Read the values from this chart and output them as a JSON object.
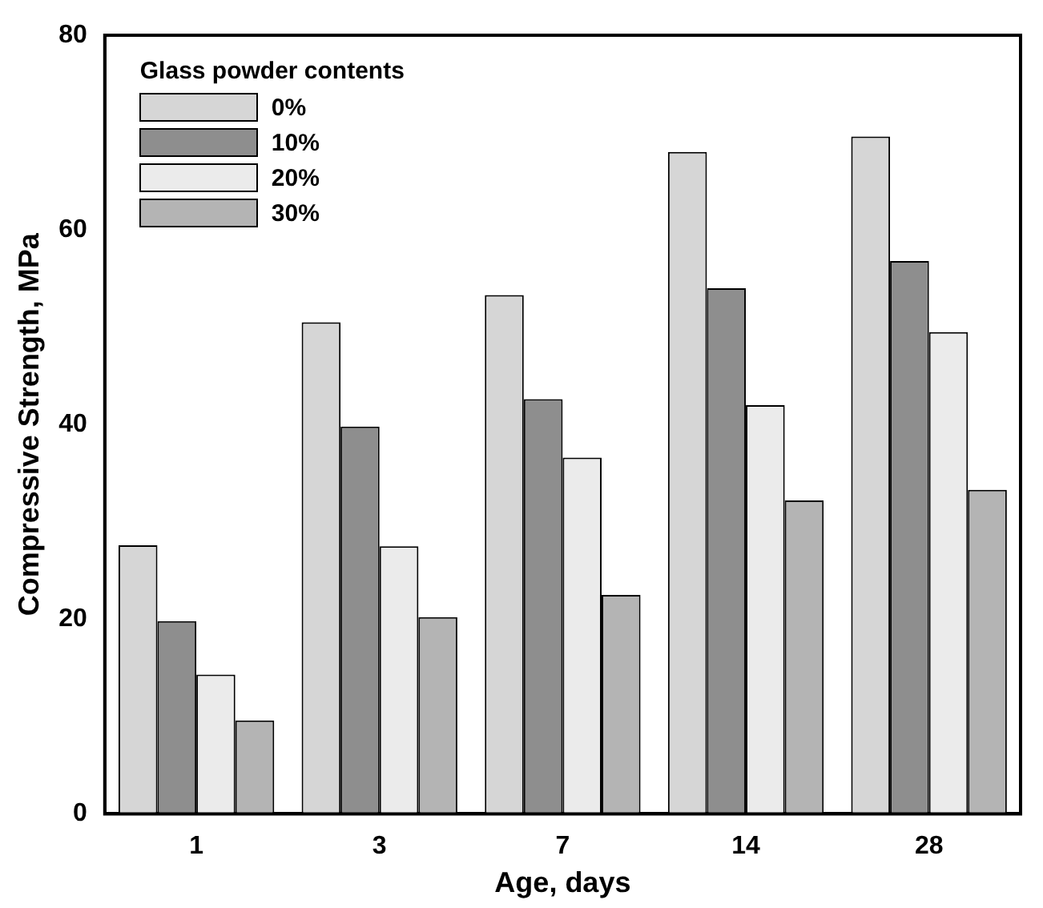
{
  "chart_data": {
    "type": "bar",
    "xlabel": "Age, days",
    "ylabel": "Compressive Strength, MPa",
    "legend_title": "Glass powder contents",
    "categories": [
      "1",
      "3",
      "7",
      "14",
      "28"
    ],
    "series": [
      {
        "name": "0%",
        "color": "#d6d6d6",
        "values": [
          27.6,
          50.5,
          53.3,
          68,
          69.6
        ]
      },
      {
        "name": "10%",
        "color": "#8e8e8e",
        "values": [
          19.8,
          39.8,
          42.6,
          54,
          56.8
        ]
      },
      {
        "name": "20%",
        "color": "#ebebeb",
        "values": [
          14.3,
          27.5,
          36.6,
          42,
          49.5
        ]
      },
      {
        "name": "30%",
        "color": "#b4b4b4",
        "values": [
          9.6,
          20.2,
          22.5,
          32.2,
          33.3
        ]
      }
    ],
    "ylim": [
      0,
      80
    ],
    "yticks": [
      0,
      20,
      40,
      60,
      80
    ],
    "grid": false,
    "legend": "top left"
  }
}
